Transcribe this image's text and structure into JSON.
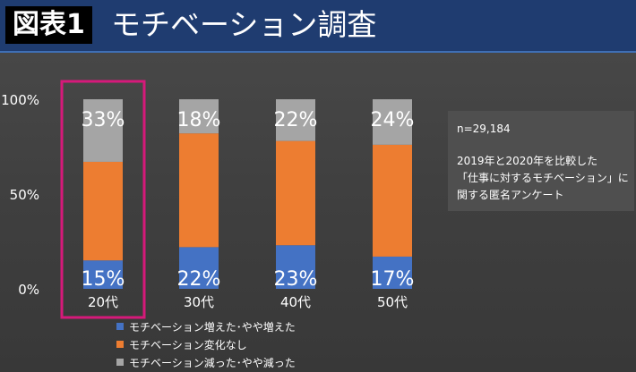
{
  "header": {
    "badge": "図表1",
    "title": "モチベーション調査"
  },
  "info": {
    "n": "n=29,184",
    "desc": "2019年と2020年を比較した\n「仕事に対するモチベーション」に\n関する匿名アンケート"
  },
  "colors": {
    "increased": "#4472c4",
    "unchanged": "#ed7d31",
    "decreased": "#a5a5a5",
    "highlight": "#d6197a",
    "header_bg": "#1f3c70"
  },
  "chart_data": {
    "type": "bar",
    "stacked": true,
    "percent": true,
    "categories": [
      "20代",
      "30代",
      "40代",
      "50代"
    ],
    "series": [
      {
        "name": "モチベーション増えた･やや増えた",
        "values": [
          15,
          22,
          23,
          17
        ],
        "labels": [
          "15%",
          "22%",
          "23%",
          "17%"
        ],
        "color": "#4472c4"
      },
      {
        "name": "モチベーション変化なし",
        "values": [
          52,
          60,
          55,
          59
        ],
        "labels": [
          "",
          "",
          "",
          ""
        ],
        "color": "#ed7d31"
      },
      {
        "name": "モチベーション減った･やや減った",
        "values": [
          33,
          18,
          22,
          24
        ],
        "labels": [
          "33%",
          "18%",
          "22%",
          "24%"
        ],
        "color": "#a5a5a5"
      }
    ],
    "yticks": [
      "0%",
      "50%",
      "100%"
    ],
    "ylim": [
      0,
      100
    ],
    "legend_position": "bottom-left",
    "highlighted_category": "20代"
  }
}
